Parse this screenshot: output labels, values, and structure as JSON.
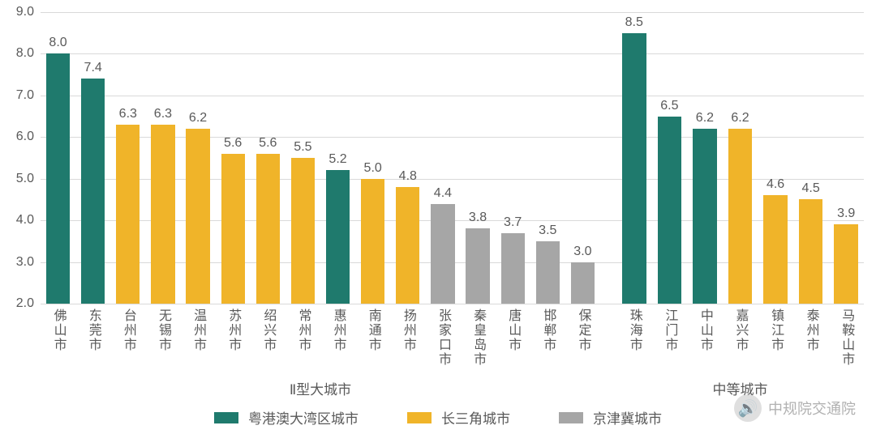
{
  "chart": {
    "type": "bar",
    "ylim": [
      2.0,
      9.0
    ],
    "ytick_step": 1.0,
    "yticks": [
      "2.0",
      "3.0",
      "4.0",
      "5.0",
      "6.0",
      "7.0",
      "8.0",
      "9.0"
    ],
    "grid_color": "#d9d9d9",
    "background_color": "#ffffff",
    "axis_label_color": "#595959",
    "axis_label_fontsize": 16,
    "value_label_fontsize": 16,
    "value_label_color": "#595959",
    "category_label_fontsize": 16,
    "category_label_color": "#595959",
    "bar_width_ratio": 0.68,
    "series_colors": {
      "gba": "#1f7a6d",
      "yrd": "#f0b429",
      "jjj": "#a6a6a6"
    },
    "legend": [
      {
        "key": "gba",
        "label": "粤港澳大湾区城市"
      },
      {
        "key": "yrd",
        "label": "长三角城市"
      },
      {
        "key": "jjj",
        "label": "京津冀城市"
      }
    ],
    "groups": [
      {
        "label": "Ⅱ型大城市",
        "bars": [
          {
            "city": "佛山市",
            "value": 8.0,
            "series": "gba"
          },
          {
            "city": "东莞市",
            "value": 7.4,
            "series": "gba"
          },
          {
            "city": "台州市",
            "value": 6.3,
            "series": "yrd"
          },
          {
            "city": "无锡市",
            "value": 6.3,
            "series": "yrd"
          },
          {
            "city": "温州市",
            "value": 6.2,
            "series": "yrd"
          },
          {
            "city": "苏州市",
            "value": 5.6,
            "series": "yrd"
          },
          {
            "city": "绍兴市",
            "value": 5.6,
            "series": "yrd"
          },
          {
            "city": "常州市",
            "value": 5.5,
            "series": "yrd"
          },
          {
            "city": "惠州市",
            "value": 5.2,
            "series": "gba"
          },
          {
            "city": "南通市",
            "value": 5.0,
            "series": "yrd"
          },
          {
            "city": "扬州市",
            "value": 4.8,
            "series": "yrd"
          },
          {
            "city": "张家口市",
            "value": 4.4,
            "series": "jjj"
          },
          {
            "city": "秦皇岛市",
            "value": 3.8,
            "series": "jjj"
          },
          {
            "city": "唐山市",
            "value": 3.7,
            "series": "jjj"
          },
          {
            "city": "邯郸市",
            "value": 3.5,
            "series": "jjj"
          },
          {
            "city": "保定市",
            "value": 3.0,
            "series": "jjj"
          }
        ]
      },
      {
        "label": "中等城市",
        "bars": [
          {
            "city": "珠海市",
            "value": 8.5,
            "series": "gba"
          },
          {
            "city": "江门市",
            "value": 6.5,
            "series": "gba"
          },
          {
            "city": "中山市",
            "value": 6.2,
            "series": "gba"
          },
          {
            "city": "嘉兴市",
            "value": 6.2,
            "series": "yrd"
          },
          {
            "city": "镇江市",
            "value": 4.6,
            "series": "yrd"
          },
          {
            "city": "泰州市",
            "value": 4.5,
            "series": "yrd"
          },
          {
            "city": "马鞍山市",
            "value": 3.9,
            "series": "yrd"
          }
        ]
      }
    ]
  },
  "watermark": {
    "icon_glyph": "🔊",
    "text": "中规院交通院",
    "text_color": "#888888",
    "icon_bg": "#cfcfcf"
  }
}
